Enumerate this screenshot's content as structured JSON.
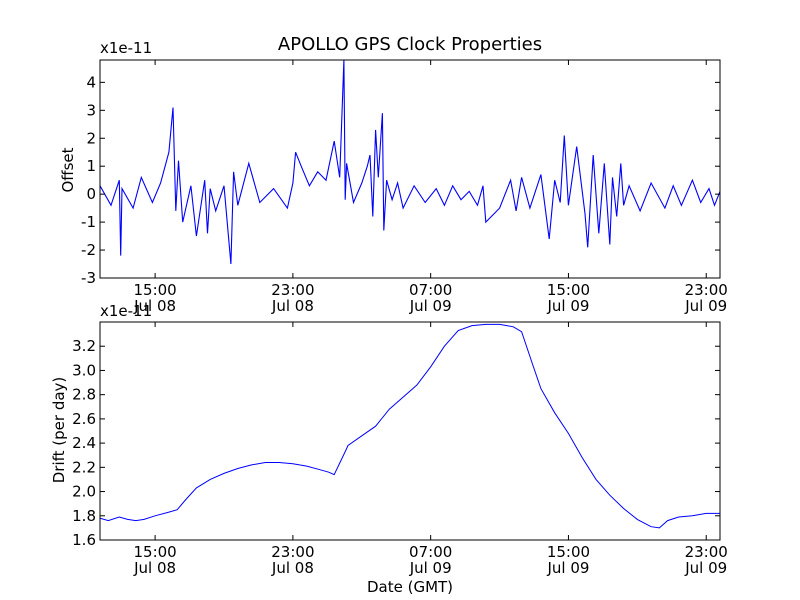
{
  "chart_data": [
    {
      "type": "line",
      "title": "APOLLO GPS Clock Properties",
      "xlabel": "",
      "ylabel": "Offset",
      "scale_label": "x1e-11",
      "ylim": [
        -3,
        4.8
      ],
      "yticks": [
        -3,
        -2,
        -1,
        0,
        1,
        2,
        3,
        4
      ],
      "xlim": [
        0,
        22.5
      ],
      "xticks": [
        {
          "x": 2,
          "time": "15:00",
          "date": "Jul 08"
        },
        {
          "x": 7,
          "time": "23:00",
          "date": "Jul 08"
        },
        {
          "x": 12,
          "time": "07:00",
          "date": "Jul 09"
        },
        {
          "x": 17,
          "time": "15:00",
          "date": "Jul 09"
        },
        {
          "x": 22,
          "time": "23:00",
          "date": "Jul 09"
        }
      ],
      "color": "#0000ff",
      "series": [
        {
          "x": [
            0,
            0.4,
            0.7,
            0.75,
            0.8,
            1.2,
            1.5,
            1.9,
            2.2,
            2.5,
            2.65,
            2.75,
            2.85,
            3,
            3.3,
            3.5,
            3.8,
            3.9,
            4.0,
            4.2,
            4.5,
            4.75,
            4.85,
            5,
            5.4,
            5.8,
            6.3,
            6.8,
            7,
            7.1,
            7.3,
            7.6,
            7.9,
            8.2,
            8.5,
            8.7,
            8.85,
            8.9,
            8.95,
            9.2,
            9.5,
            9.7,
            9.8,
            9.9,
            10.0,
            10.1,
            10.25,
            10.3,
            10.4,
            10.6,
            10.8,
            11,
            11.4,
            11.8,
            12.2,
            12.5,
            12.8,
            13.1,
            13.4,
            13.7,
            13.9,
            14,
            14.5,
            14.9,
            15.1,
            15.3,
            15.6,
            16,
            16.3,
            16.5,
            16.7,
            16.85,
            17.0,
            17.3,
            17.6,
            17.7,
            17.9,
            18.1,
            18.3,
            18.5,
            18.6,
            18.75,
            18.9,
            19.0,
            19.2,
            19.6,
            20,
            20.5,
            20.8,
            21.1,
            21.5,
            21.8,
            22.1,
            22.3,
            22.5
          ],
          "y": [
            0.3,
            -0.4,
            0.5,
            -2.2,
            0.2,
            -0.5,
            0.6,
            -0.3,
            0.4,
            1.5,
            3.1,
            -0.6,
            1.2,
            -1.0,
            0.3,
            -1.5,
            0.5,
            -1.4,
            0.2,
            -0.6,
            0.3,
            -2.5,
            0.8,
            -0.4,
            1.1,
            -0.3,
            0.2,
            -0.5,
            0.4,
            1.5,
            1.0,
            0.3,
            0.8,
            0.5,
            1.9,
            0.6,
            4.8,
            -0.2,
            1.1,
            -0.3,
            0.4,
            1.0,
            1.4,
            -0.8,
            2.3,
            0.6,
            2.9,
            -1.3,
            0.5,
            -0.2,
            0.4,
            -0.5,
            0.3,
            -0.3,
            0.2,
            -0.4,
            0.3,
            -0.2,
            0.1,
            -0.4,
            0.3,
            -1.0,
            -0.5,
            0.5,
            -0.6,
            0.6,
            -0.5,
            0.7,
            -1.6,
            0.5,
            -0.3,
            2.1,
            -0.4,
            1.7,
            -0.7,
            -1.9,
            1.4,
            -1.4,
            1.1,
            -1.8,
            0.6,
            -0.8,
            1.1,
            -0.4,
            0.3,
            -0.6,
            0.4,
            -0.5,
            0.3,
            -0.4,
            0.5,
            -0.3,
            0.2,
            -0.4,
            0.1
          ]
        }
      ]
    },
    {
      "type": "line",
      "title": "",
      "xlabel": "Date (GMT)",
      "ylabel": "Drift (per day)",
      "scale_label": "x1e-11",
      "ylim": [
        1.6,
        3.4
      ],
      "yticks": [
        1.6,
        1.8,
        2.0,
        2.2,
        2.4,
        2.6,
        2.8,
        3.0,
        3.2
      ],
      "xlim": [
        0,
        22.5
      ],
      "xticks": [
        {
          "x": 2,
          "time": "15:00",
          "date": "Jul 08"
        },
        {
          "x": 7,
          "time": "23:00",
          "date": "Jul 08"
        },
        {
          "x": 12,
          "time": "07:00",
          "date": "Jul 09"
        },
        {
          "x": 17,
          "time": "15:00",
          "date": "Jul 09"
        },
        {
          "x": 22,
          "time": "23:00",
          "date": "Jul 09"
        }
      ],
      "color": "#0000ff",
      "series": [
        {
          "x": [
            0,
            0.3,
            0.7,
            1.0,
            1.3,
            1.6,
            2.0,
            2.5,
            2.8,
            3.1,
            3.5,
            4.0,
            4.5,
            5.0,
            5.5,
            6.0,
            6.5,
            7.0,
            7.5,
            8.0,
            8.3,
            8.5,
            8.9,
            9.0,
            9.5,
            10.0,
            10.5,
            11.0,
            11.5,
            12.0,
            12.5,
            13.0,
            13.5,
            14.0,
            14.5,
            15.0,
            15.3,
            15.7,
            16.0,
            16.5,
            17.0,
            17.5,
            18.0,
            18.5,
            19.0,
            19.5,
            20.0,
            20.3,
            20.6,
            21.0,
            21.5,
            22.0,
            22.5
          ],
          "y": [
            1.78,
            1.76,
            1.79,
            1.77,
            1.76,
            1.77,
            1.8,
            1.83,
            1.85,
            1.93,
            2.03,
            2.1,
            2.15,
            2.19,
            2.22,
            2.24,
            2.24,
            2.23,
            2.21,
            2.18,
            2.16,
            2.14,
            2.33,
            2.38,
            2.46,
            2.54,
            2.68,
            2.78,
            2.88,
            3.03,
            3.2,
            3.33,
            3.37,
            3.38,
            3.38,
            3.36,
            3.32,
            3.05,
            2.85,
            2.65,
            2.48,
            2.28,
            2.1,
            1.97,
            1.86,
            1.77,
            1.71,
            1.7,
            1.76,
            1.79,
            1.8,
            1.82,
            1.82
          ]
        }
      ]
    }
  ]
}
